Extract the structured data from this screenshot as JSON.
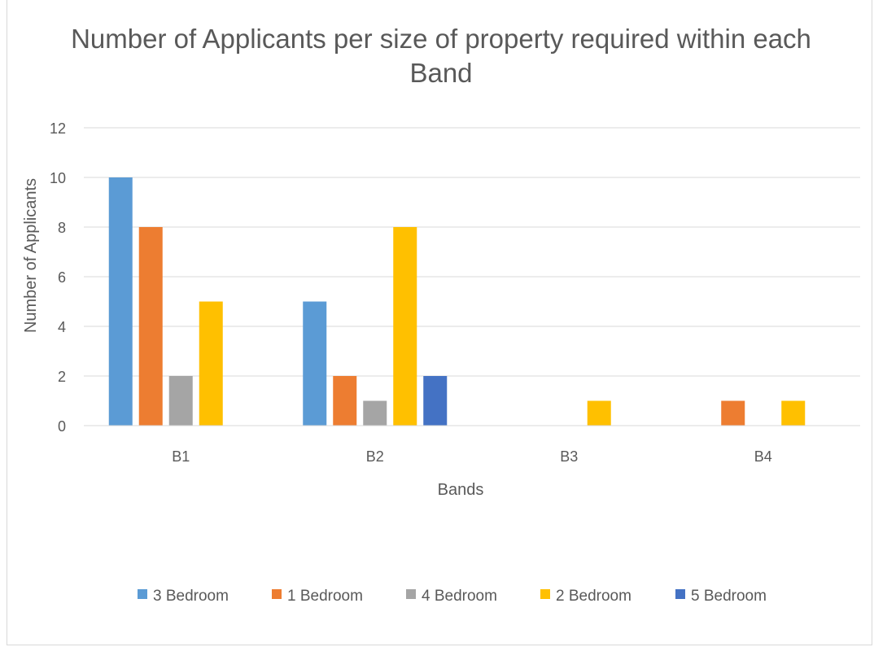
{
  "chart_data": {
    "type": "bar",
    "title": "Number of Applicants per size of property required within each Band",
    "title_lines": [
      "Number of Applicants per size of property required within each",
      "Band"
    ],
    "xlabel": "Bands",
    "ylabel": "Number of Applicants",
    "categories": [
      "B1",
      "B2",
      "B3",
      "B4"
    ],
    "ylim": [
      0,
      12
    ],
    "yticks": [
      0,
      2,
      4,
      6,
      8,
      10,
      12
    ],
    "grid": true,
    "legend_position": "bottom",
    "series": [
      {
        "name": "3 Bedroom",
        "color": "#5b9bd5",
        "values": [
          10,
          5,
          0,
          0
        ]
      },
      {
        "name": "1 Bedroom",
        "color": "#ed7d31",
        "values": [
          8,
          2,
          0,
          1
        ]
      },
      {
        "name": "4 Bedroom",
        "color": "#a5a5a5",
        "values": [
          2,
          1,
          0,
          0
        ]
      },
      {
        "name": "2 Bedroom",
        "color": "#ffc000",
        "values": [
          5,
          8,
          1,
          1
        ]
      },
      {
        "name": "5 Bedroom",
        "color": "#4472c4",
        "values": [
          0,
          2,
          0,
          0
        ]
      }
    ]
  }
}
